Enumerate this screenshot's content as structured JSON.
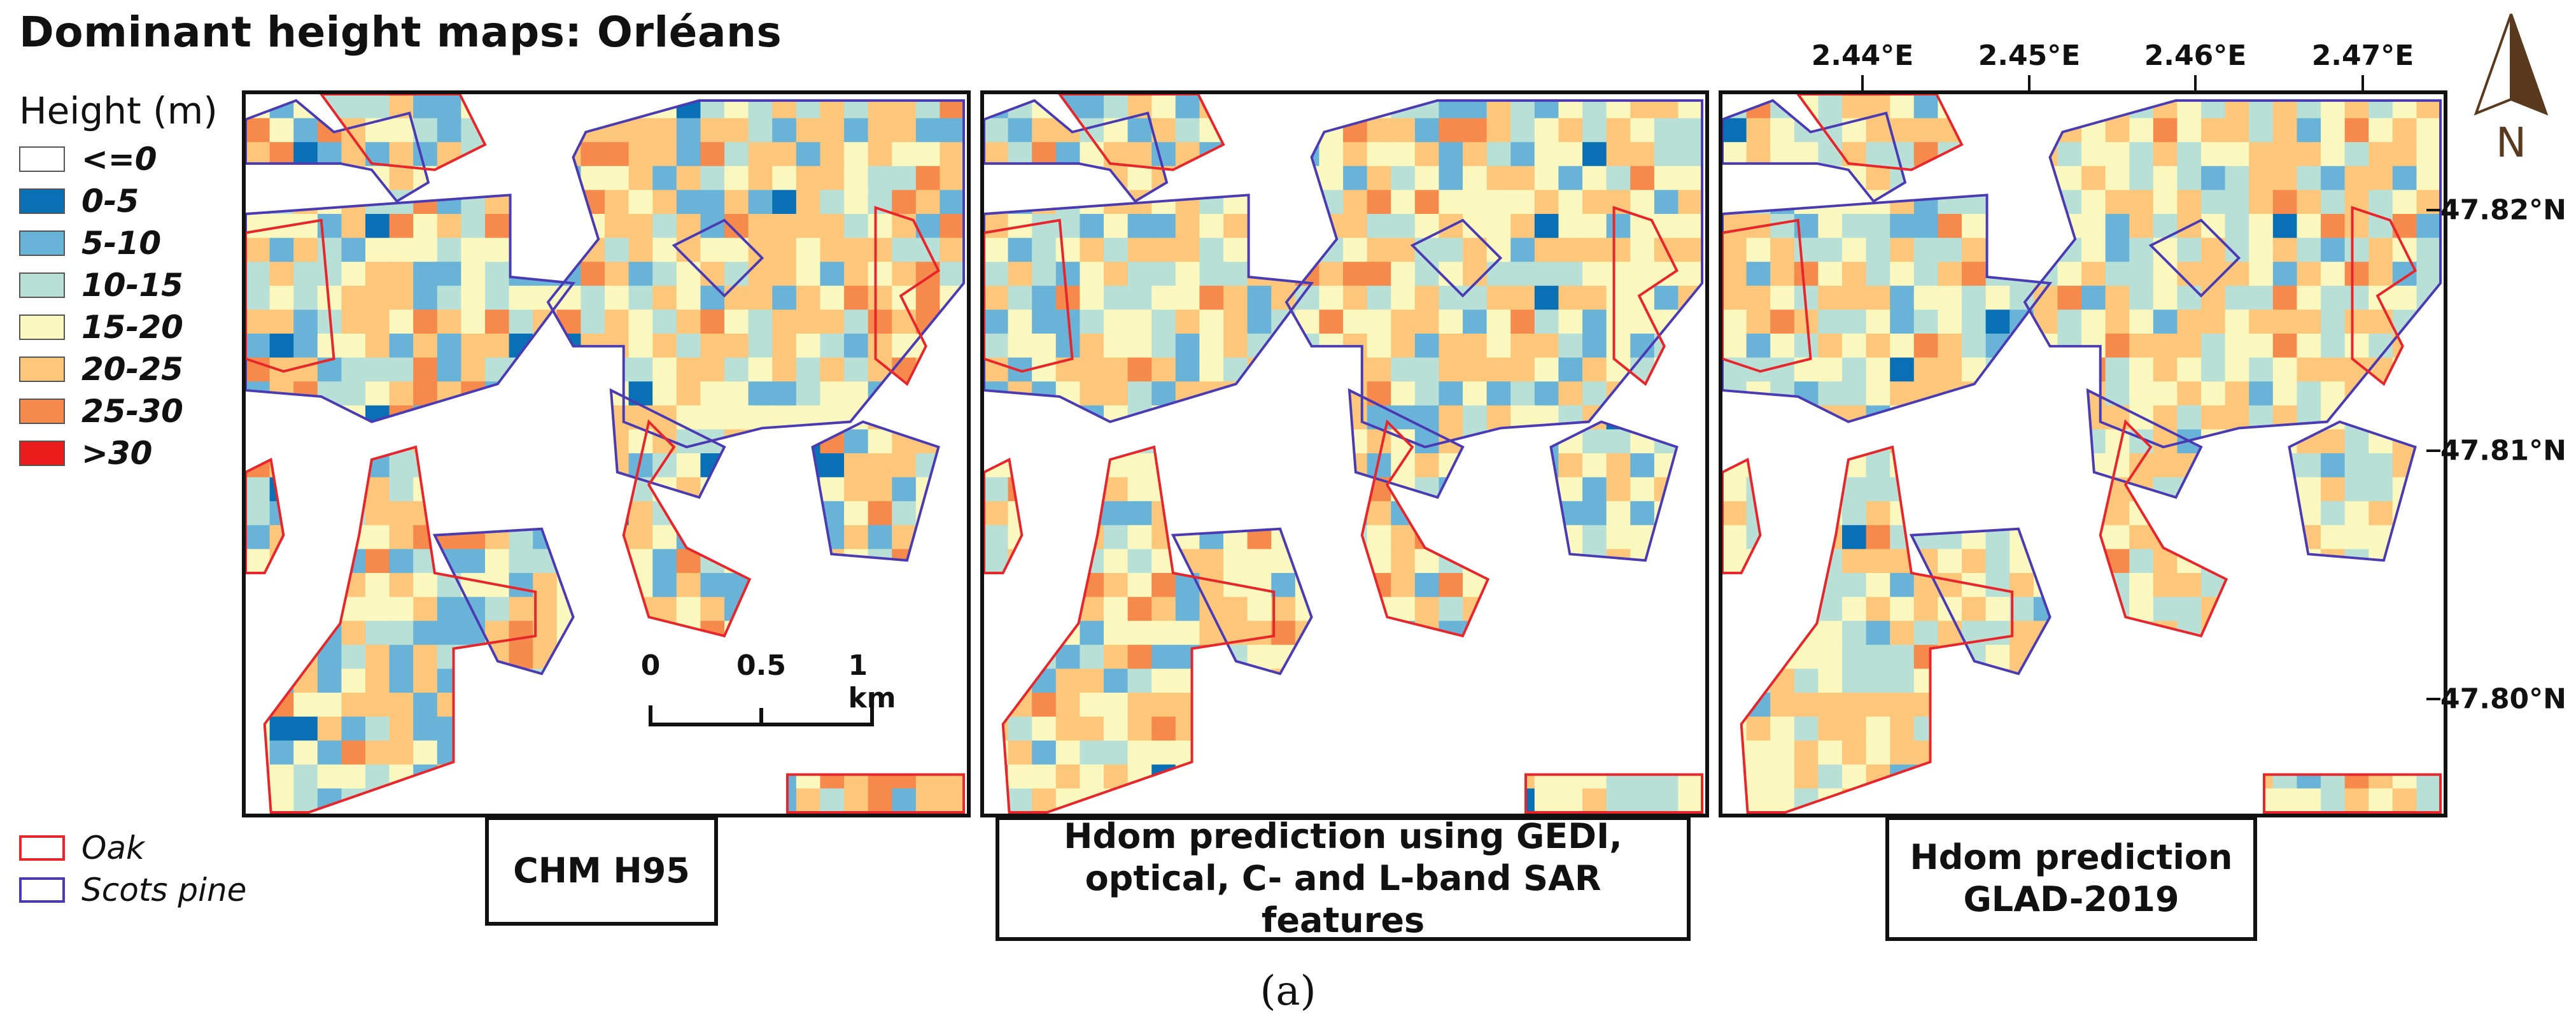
{
  "figure": {
    "title": "Dominant height maps: Orléans",
    "subfigure_label": "(a)"
  },
  "legend": {
    "title": "Height (m)",
    "classes": [
      {
        "label": "<=0",
        "color": "#ffffff"
      },
      {
        "label": "0-5",
        "color": "#0a70b5"
      },
      {
        "label": "5-10",
        "color": "#6ab3d8"
      },
      {
        "label": "10-15",
        "color": "#b9e0d6"
      },
      {
        "label": "15-20",
        "color": "#fbf8bf"
      },
      {
        "label": "20-25",
        "color": "#fcc77b"
      },
      {
        "label": "25-30",
        "color": "#f58a4c"
      },
      {
        "label": ">30",
        "color": "#ea1c1c"
      }
    ]
  },
  "forest_types": [
    {
      "label": "Oak",
      "color": "#e8252b"
    },
    {
      "label": "Scots pine",
      "color": "#4a3bb5"
    }
  ],
  "panels": [
    {
      "caption_line1": "CHM H95",
      "caption_line2": ""
    },
    {
      "caption_line1": "Hdom prediction using GEDI,",
      "caption_line2": "optical, C- and L-band SAR features"
    },
    {
      "caption_line1": "Hdom prediction",
      "caption_line2": "GLAD-2019"
    }
  ],
  "axes": {
    "longitude_ticks": [
      "2.44°E",
      "2.45°E",
      "2.46°E",
      "2.47°E"
    ],
    "latitude_ticks": [
      "47.82°N",
      "47.81°N",
      "47.80°N"
    ]
  },
  "scale_bar": {
    "labels": [
      "0",
      "0.5",
      "1 km"
    ]
  },
  "north_arrow": {
    "label": "N"
  }
}
